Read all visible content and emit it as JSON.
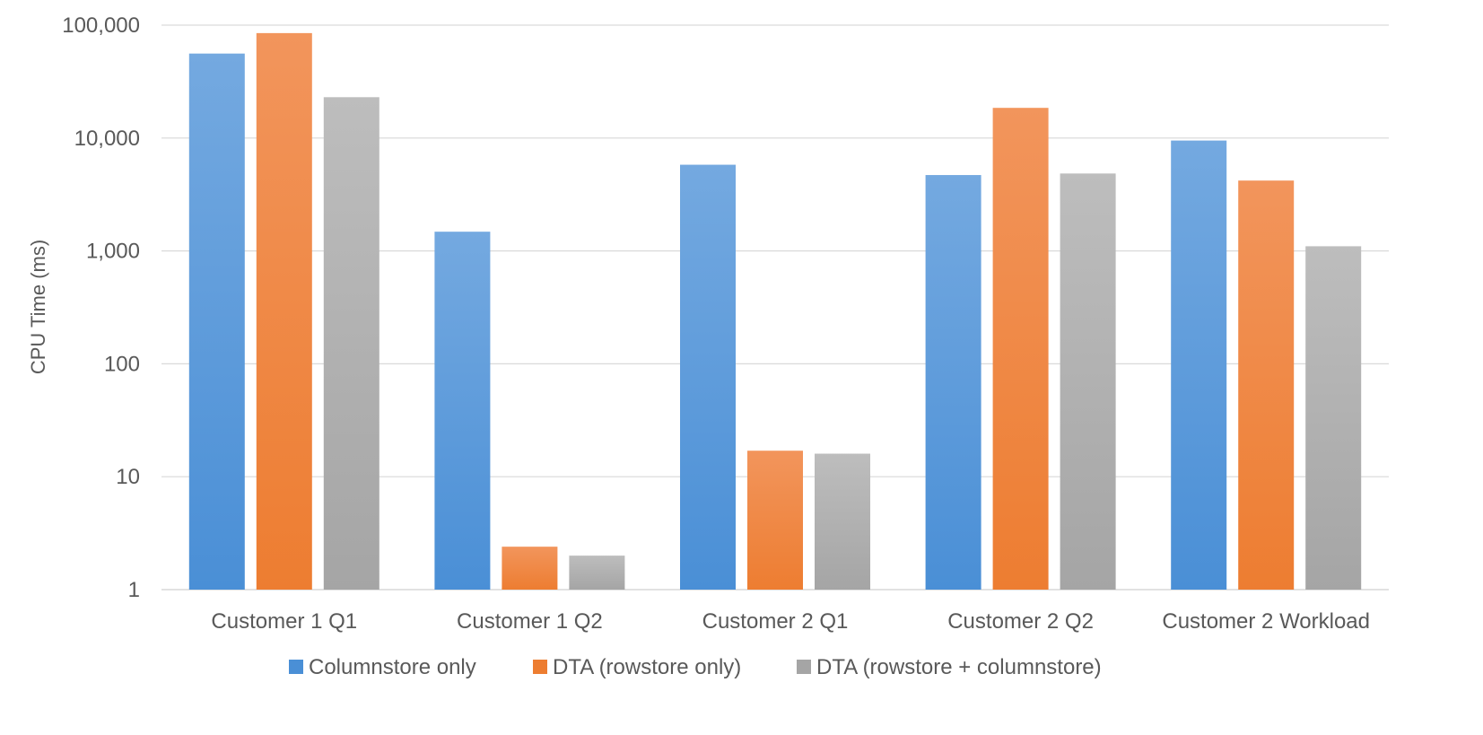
{
  "chart_data": {
    "type": "bar",
    "yscale": "log",
    "ylim": [
      1,
      100000
    ],
    "ylabel": "CPU Time (ms)",
    "xlabel": "",
    "title": "",
    "grid": true,
    "legend_position": "bottom",
    "y_ticks": [
      1,
      10,
      100,
      1000,
      10000,
      100000
    ],
    "y_tick_labels": [
      "1",
      "10",
      "100",
      "1,000",
      "10,000",
      "100,000"
    ],
    "categories": [
      "Customer 1 Q1",
      "Customer 1 Q2",
      "Customer 2 Q1",
      "Customer 2 Q2",
      "Customer 2 Workload"
    ],
    "series": [
      {
        "name": "Columnstore only",
        "color": "#4a8fd6",
        "color_light": "#74a9e0",
        "values": [
          56000,
          1480,
          5800,
          4700,
          9500
        ]
      },
      {
        "name": "DTA (rowstore only)",
        "color": "#ed7d31",
        "color_light": "#f2955c",
        "values": [
          85000,
          2.4,
          17,
          18500,
          4200
        ]
      },
      {
        "name": "DTA (rowstore + columnstore)",
        "color": "#a5a5a5",
        "color_light": "#bdbdbd",
        "values": [
          23000,
          2.0,
          16,
          4850,
          1100
        ]
      }
    ]
  }
}
